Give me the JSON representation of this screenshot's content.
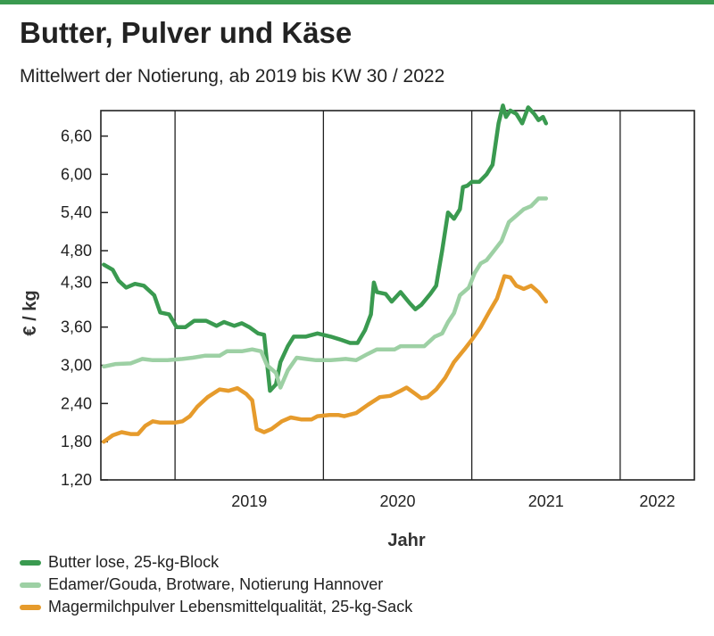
{
  "header": {
    "title": "Butter, Pulver und Käse",
    "subtitle": "Mittelwert der Notierung, ab 2019 bis KW 30 / 2022"
  },
  "colors": {
    "butter": "#3a9a50",
    "edamer": "#9dd0a4",
    "pulver": "#e69b2c",
    "accent_bar": "#3a9a50",
    "grid": "#222222"
  },
  "chart_data": {
    "type": "line",
    "xlabel": "Jahr",
    "ylabel": "€ / kg",
    "x_range": [
      2018.5,
      2022.5
    ],
    "ylim": [
      1.2,
      7.0
    ],
    "y_ticks": [
      1.2,
      1.8,
      2.4,
      3.0,
      3.6,
      4.3,
      4.8,
      5.4,
      6.0,
      6.6
    ],
    "y_tick_labels": [
      "1,20",
      "1,80",
      "2,40",
      "3,00",
      "3,60",
      "4,30",
      "4,80",
      "5,40",
      "6,00",
      "6,60"
    ],
    "x_categories": [
      "2019",
      "2020",
      "2021",
      "2022"
    ],
    "year_boundaries": [
      2019,
      2020,
      2021,
      2022
    ],
    "grid": "vertical",
    "series": [
      {
        "name": "Butter lose, 25-kg-Block",
        "color": "#3a9a50",
        "points": [
          [
            2018.52,
            4.58
          ],
          [
            2018.58,
            4.5
          ],
          [
            2018.62,
            4.33
          ],
          [
            2018.67,
            4.22
          ],
          [
            2018.73,
            4.28
          ],
          [
            2018.79,
            4.25
          ],
          [
            2018.86,
            4.1
          ],
          [
            2018.9,
            3.83
          ],
          [
            2018.96,
            3.8
          ],
          [
            2019.01,
            3.6
          ],
          [
            2019.07,
            3.6
          ],
          [
            2019.13,
            3.7
          ],
          [
            2019.21,
            3.7
          ],
          [
            2019.28,
            3.62
          ],
          [
            2019.33,
            3.68
          ],
          [
            2019.4,
            3.62
          ],
          [
            2019.45,
            3.66
          ],
          [
            2019.5,
            3.6
          ],
          [
            2019.56,
            3.5
          ],
          [
            2019.6,
            3.48
          ],
          [
            2019.64,
            2.6
          ],
          [
            2019.68,
            2.7
          ],
          [
            2019.71,
            3.05
          ],
          [
            2019.76,
            3.3
          ],
          [
            2019.8,
            3.45
          ],
          [
            2019.88,
            3.45
          ],
          [
            2019.96,
            3.5
          ],
          [
            2020.05,
            3.45
          ],
          [
            2020.12,
            3.4
          ],
          [
            2020.18,
            3.35
          ],
          [
            2020.23,
            3.35
          ],
          [
            2020.28,
            3.55
          ],
          [
            2020.32,
            3.8
          ],
          [
            2020.34,
            4.3
          ],
          [
            2020.36,
            4.15
          ],
          [
            2020.42,
            4.12
          ],
          [
            2020.46,
            4.0
          ],
          [
            2020.52,
            4.15
          ],
          [
            2020.58,
            3.98
          ],
          [
            2020.62,
            3.88
          ],
          [
            2020.66,
            3.95
          ],
          [
            2020.72,
            4.12
          ],
          [
            2020.76,
            4.25
          ],
          [
            2020.8,
            4.8
          ],
          [
            2020.84,
            5.4
          ],
          [
            2020.88,
            5.3
          ],
          [
            2020.92,
            5.45
          ],
          [
            2020.94,
            5.8
          ],
          [
            2020.97,
            5.82
          ],
          [
            2021.0,
            5.88
          ],
          [
            2021.05,
            5.88
          ],
          [
            2021.1,
            6.0
          ],
          [
            2021.14,
            6.15
          ],
          [
            2021.18,
            6.8
          ],
          [
            2021.21,
            7.08
          ],
          [
            2021.23,
            6.9
          ],
          [
            2021.26,
            7.0
          ],
          [
            2021.3,
            6.95
          ],
          [
            2021.34,
            6.8
          ],
          [
            2021.38,
            7.05
          ],
          [
            2021.42,
            6.95
          ],
          [
            2021.45,
            6.85
          ],
          [
            2021.48,
            6.9
          ],
          [
            2021.5,
            6.8
          ]
        ]
      },
      {
        "name": "Edamer/Gouda, Brotware, Notierung Hannover",
        "color": "#9dd0a4",
        "points": [
          [
            2018.52,
            2.98
          ],
          [
            2018.6,
            3.02
          ],
          [
            2018.7,
            3.03
          ],
          [
            2018.78,
            3.1
          ],
          [
            2018.85,
            3.08
          ],
          [
            2018.95,
            3.08
          ],
          [
            2019.05,
            3.1
          ],
          [
            2019.12,
            3.12
          ],
          [
            2019.2,
            3.15
          ],
          [
            2019.3,
            3.15
          ],
          [
            2019.35,
            3.22
          ],
          [
            2019.45,
            3.22
          ],
          [
            2019.52,
            3.25
          ],
          [
            2019.58,
            3.22
          ],
          [
            2019.62,
            3.0
          ],
          [
            2019.68,
            2.88
          ],
          [
            2019.71,
            2.65
          ],
          [
            2019.76,
            2.92
          ],
          [
            2019.82,
            3.12
          ],
          [
            2019.88,
            3.1
          ],
          [
            2019.95,
            3.08
          ],
          [
            2020.05,
            3.08
          ],
          [
            2020.15,
            3.1
          ],
          [
            2020.22,
            3.08
          ],
          [
            2020.3,
            3.18
          ],
          [
            2020.36,
            3.25
          ],
          [
            2020.42,
            3.25
          ],
          [
            2020.48,
            3.25
          ],
          [
            2020.52,
            3.3
          ],
          [
            2020.6,
            3.3
          ],
          [
            2020.68,
            3.3
          ],
          [
            2020.75,
            3.45
          ],
          [
            2020.8,
            3.5
          ],
          [
            2020.84,
            3.68
          ],
          [
            2020.88,
            3.82
          ],
          [
            2020.92,
            4.1
          ],
          [
            2020.98,
            4.22
          ],
          [
            2021.02,
            4.45
          ],
          [
            2021.06,
            4.6
          ],
          [
            2021.1,
            4.65
          ],
          [
            2021.15,
            4.8
          ],
          [
            2021.2,
            4.95
          ],
          [
            2021.25,
            5.25
          ],
          [
            2021.3,
            5.35
          ],
          [
            2021.35,
            5.45
          ],
          [
            2021.4,
            5.5
          ],
          [
            2021.45,
            5.62
          ],
          [
            2021.5,
            5.62
          ]
        ]
      },
      {
        "name": "Magermilchpulver Lebensmittelqualität, 25-kg-Sack",
        "color": "#e69b2c",
        "points": [
          [
            2018.52,
            1.8
          ],
          [
            2018.58,
            1.9
          ],
          [
            2018.64,
            1.95
          ],
          [
            2018.7,
            1.92
          ],
          [
            2018.75,
            1.92
          ],
          [
            2018.8,
            2.05
          ],
          [
            2018.85,
            2.12
          ],
          [
            2018.9,
            2.1
          ],
          [
            2018.95,
            2.1
          ],
          [
            2019.0,
            2.1
          ],
          [
            2019.05,
            2.12
          ],
          [
            2019.1,
            2.2
          ],
          [
            2019.15,
            2.35
          ],
          [
            2019.22,
            2.5
          ],
          [
            2019.3,
            2.62
          ],
          [
            2019.36,
            2.6
          ],
          [
            2019.42,
            2.64
          ],
          [
            2019.48,
            2.55
          ],
          [
            2019.52,
            2.45
          ],
          [
            2019.55,
            2.0
          ],
          [
            2019.6,
            1.95
          ],
          [
            2019.65,
            2.0
          ],
          [
            2019.72,
            2.12
          ],
          [
            2019.78,
            2.18
          ],
          [
            2019.85,
            2.15
          ],
          [
            2019.92,
            2.15
          ],
          [
            2019.96,
            2.2
          ],
          [
            2020.04,
            2.22
          ],
          [
            2020.1,
            2.22
          ],
          [
            2020.14,
            2.2
          ],
          [
            2020.22,
            2.25
          ],
          [
            2020.3,
            2.38
          ],
          [
            2020.38,
            2.5
          ],
          [
            2020.45,
            2.52
          ],
          [
            2020.52,
            2.6
          ],
          [
            2020.56,
            2.65
          ],
          [
            2020.62,
            2.55
          ],
          [
            2020.66,
            2.48
          ],
          [
            2020.7,
            2.5
          ],
          [
            2020.76,
            2.62
          ],
          [
            2020.82,
            2.8
          ],
          [
            2020.88,
            3.05
          ],
          [
            2020.95,
            3.25
          ],
          [
            2021.0,
            3.4
          ],
          [
            2021.06,
            3.6
          ],
          [
            2021.12,
            3.85
          ],
          [
            2021.17,
            4.05
          ],
          [
            2021.22,
            4.4
          ],
          [
            2021.26,
            4.38
          ],
          [
            2021.3,
            4.25
          ],
          [
            2021.35,
            4.2
          ],
          [
            2021.4,
            4.25
          ],
          [
            2021.45,
            4.15
          ],
          [
            2021.5,
            4.0
          ]
        ]
      }
    ]
  }
}
